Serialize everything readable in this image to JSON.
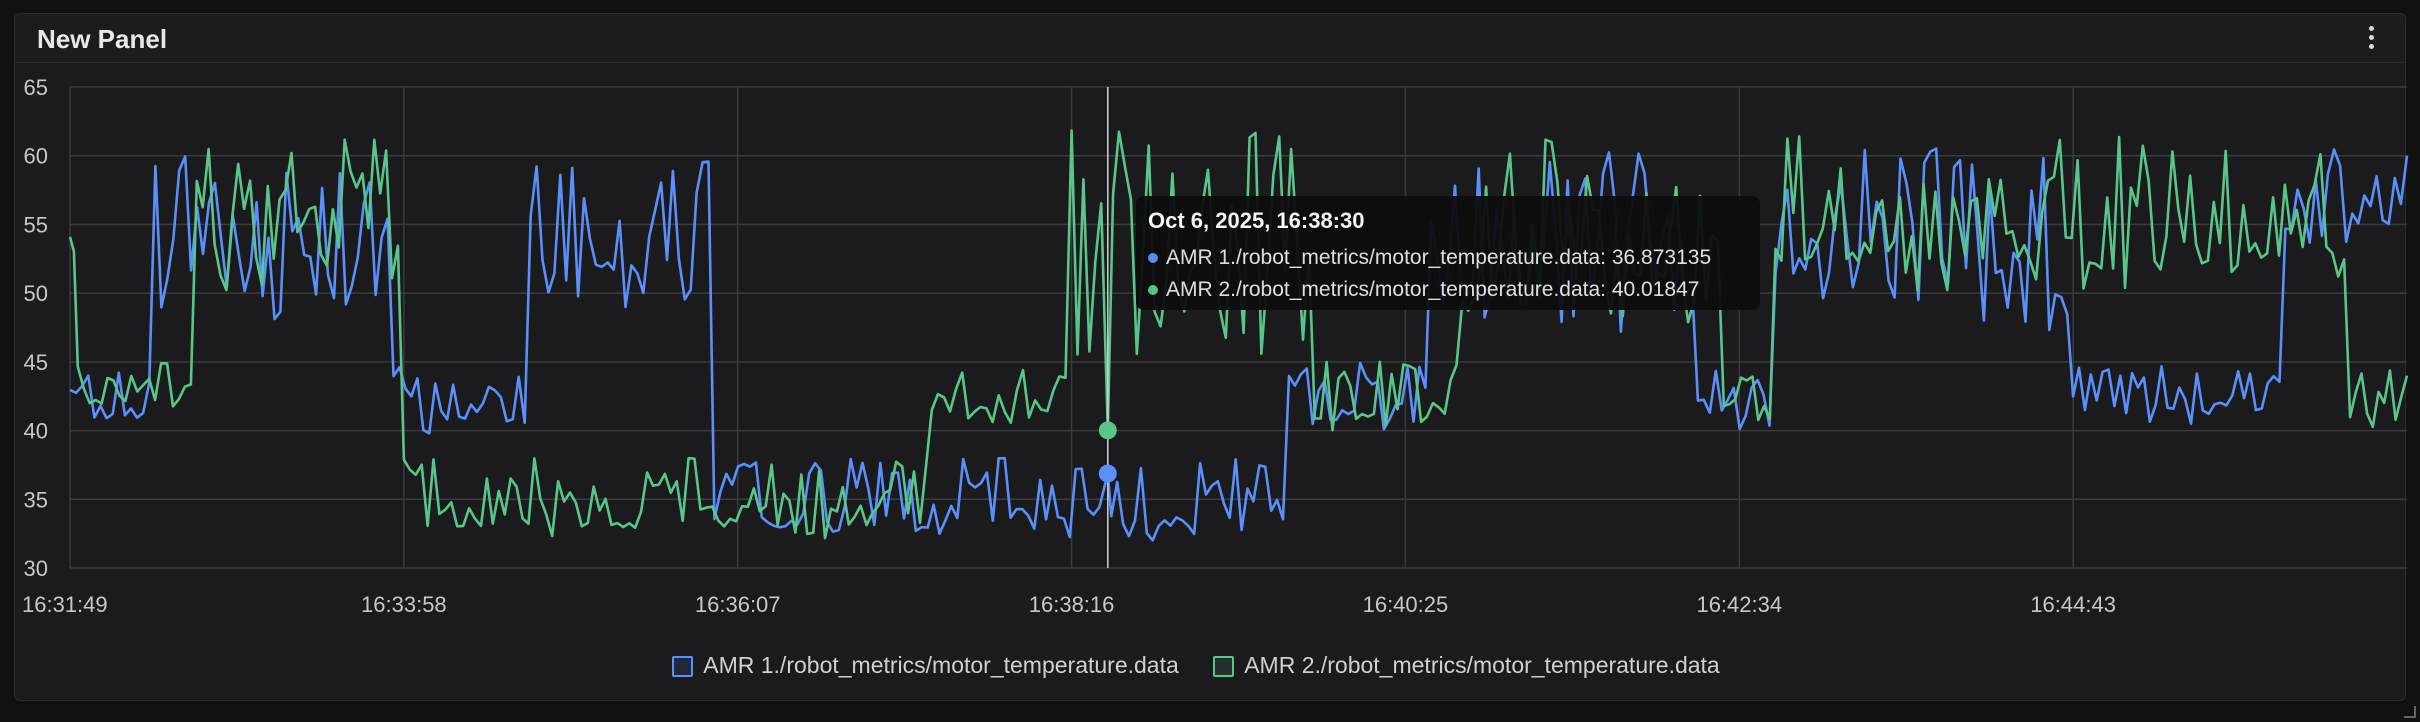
{
  "panel": {
    "title": "New Panel",
    "menu_icon": "vertical-ellipsis-icon"
  },
  "tooltip": {
    "time": "Oct 6, 2025, 16:38:30",
    "rows": [
      {
        "label": "AMR 1./robot_metrics/motor_temperature.data:",
        "value": "36.873135",
        "color": "#5b8ff9"
      },
      {
        "label": "AMR 2./robot_metrics/motor_temperature.data:",
        "value": "40.01847",
        "color": "#5ac58a"
      }
    ]
  },
  "legend": [
    {
      "label": "AMR 1./robot_metrics/motor_temperature.data",
      "color": "#5b8ff9"
    },
    {
      "label": "AMR 2./robot_metrics/motor_temperature.data",
      "color": "#5ac58a"
    }
  ],
  "chart_data": {
    "type": "line",
    "title": "",
    "xlabel": "",
    "ylabel": "",
    "ylim": [
      30,
      65
    ],
    "yticks": [
      30,
      35,
      40,
      45,
      50,
      55,
      60,
      65
    ],
    "xlim": [
      "16:31:49",
      "16:46:52"
    ],
    "xticks": [
      "16:31:49",
      "16:33:58",
      "16:36:07",
      "16:38:16",
      "16:40:25",
      "16:42:34",
      "16:44:43"
    ],
    "grid": true,
    "hover_time": "16:38:30",
    "series": [
      {
        "name": "AMR 1./robot_metrics/motor_temperature.data",
        "color": "#5b8ff9",
        "segments": [
          {
            "start": "16:31:49",
            "end": "16:32:22",
            "low": 40,
            "high": 44.5
          },
          {
            "start": "16:32:22",
            "end": "16:33:54",
            "low": 47,
            "high": 61.5
          },
          {
            "start": "16:33:54",
            "end": "16:34:47",
            "low": 39.5,
            "high": 45
          },
          {
            "start": "16:34:47",
            "end": "16:35:58",
            "low": 49,
            "high": 61
          },
          {
            "start": "16:35:58",
            "end": "16:39:40",
            "low": 32,
            "high": 38
          },
          {
            "start": "16:39:40",
            "end": "16:40:35",
            "low": 40,
            "high": 45
          },
          {
            "start": "16:40:35",
            "end": "16:42:18",
            "low": 47,
            "high": 61
          },
          {
            "start": "16:42:18",
            "end": "16:42:48",
            "low": 40,
            "high": 44.5
          },
          {
            "start": "16:42:48",
            "end": "16:44:43",
            "low": 47,
            "high": 61.5
          },
          {
            "start": "16:44:43",
            "end": "16:46:05",
            "low": 40.5,
            "high": 45
          },
          {
            "start": "16:46:05",
            "end": "16:46:52",
            "low": 52,
            "high": 60.5
          }
        ],
        "hover_value": 36.873135
      },
      {
        "name": "AMR 2./robot_metrics/motor_temperature.data",
        "color": "#5ac58a",
        "segments": [
          {
            "start": "16:31:49",
            "end": "16:31:52",
            "low": 52,
            "high": 55.5
          },
          {
            "start": "16:31:52",
            "end": "16:32:38",
            "low": 40.5,
            "high": 45
          },
          {
            "start": "16:32:38",
            "end": "16:33:58",
            "low": 50,
            "high": 61.5
          },
          {
            "start": "16:33:58",
            "end": "16:37:22",
            "low": 32,
            "high": 38
          },
          {
            "start": "16:37:22",
            "end": "16:38:16",
            "low": 40,
            "high": 45
          },
          {
            "start": "16:38:16",
            "end": "16:39:50",
            "low": 45,
            "high": 62
          },
          {
            "start": "16:39:50",
            "end": "16:40:47",
            "low": 40,
            "high": 45
          },
          {
            "start": "16:40:47",
            "end": "16:42:28",
            "low": 47,
            "high": 62
          },
          {
            "start": "16:42:28",
            "end": "16:42:48",
            "low": 40,
            "high": 44.5
          },
          {
            "start": "16:42:48",
            "end": "16:46:30",
            "low": 50,
            "high": 61.5
          },
          {
            "start": "16:46:30",
            "end": "16:46:52",
            "low": 40,
            "high": 44.5
          }
        ],
        "hover_value": 40.01847
      }
    ]
  }
}
